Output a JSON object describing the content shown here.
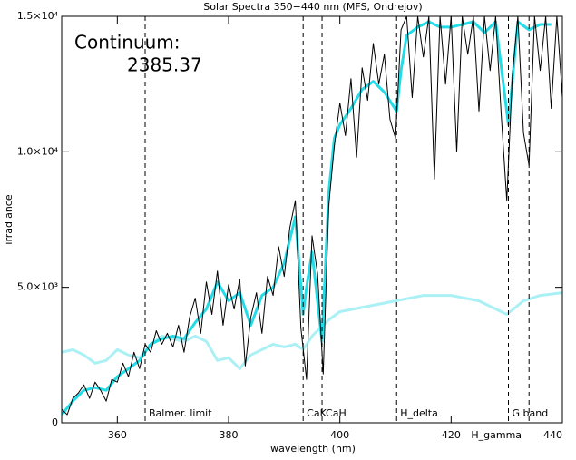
{
  "chart_data": {
    "type": "line",
    "title": "Solar Spectra 350−440 nm (MFS, Ondrejov)",
    "xlabel": "wavelength (nm)",
    "ylabel": "irradiance",
    "annotations": [
      "Continuum:",
      "2385.37"
    ],
    "xlim": [
      350,
      440
    ],
    "ylim": [
      0,
      15000
    ],
    "xticks": [
      360,
      380,
      400,
      420,
      440
    ],
    "yticks": [
      0,
      {
        "value": 5000,
        "label": "5.0×10³"
      },
      {
        "value": 10000,
        "label": "1.0×10⁴"
      },
      {
        "value": 15000,
        "label": "1.5×10⁴"
      }
    ],
    "markers": [
      {
        "x": 365,
        "label": "Balmer. limit"
      },
      {
        "x": 393.4,
        "label": "CaK"
      },
      {
        "x": 396.8,
        "label": "CaH"
      },
      {
        "x": 410.2,
        "label": "H_delta"
      },
      {
        "x": 430.3,
        "label": "G band"
      },
      {
        "x": 434,
        "label": "H_gamma"
      }
    ],
    "series": [
      {
        "color": "#000000",
        "x": [
          350,
          351,
          352,
          353,
          354,
          355,
          356,
          357,
          358,
          359,
          360,
          361,
          362,
          363,
          364,
          365,
          366,
          367,
          368,
          369,
          370,
          371,
          372,
          373,
          374,
          375,
          376,
          377,
          378,
          379,
          380,
          381,
          382,
          383,
          384,
          385,
          386,
          387,
          388,
          389,
          390,
          391,
          392,
          393,
          394,
          395,
          396,
          397,
          398,
          399,
          400,
          401,
          402,
          403,
          404,
          405,
          406,
          407,
          408,
          409,
          410,
          411,
          412,
          413,
          414,
          415,
          416,
          417,
          418,
          419,
          420,
          421,
          422,
          423,
          424,
          425,
          426,
          427,
          428,
          429,
          430,
          431,
          432,
          433,
          434,
          435,
          436,
          437,
          438,
          439,
          440
        ],
        "values": [
          500,
          300,
          900,
          1100,
          1400,
          900,
          1500,
          1200,
          800,
          1600,
          1500,
          2200,
          1700,
          2600,
          2000,
          2900,
          2600,
          3400,
          2900,
          3300,
          2800,
          3600,
          2600,
          3900,
          4600,
          3300,
          5200,
          4000,
          5600,
          3600,
          5100,
          4200,
          5300,
          2100,
          3900,
          4800,
          3300,
          5400,
          4700,
          6500,
          5400,
          7200,
          8200,
          3500,
          1600,
          6900,
          5500,
          1800,
          8000,
          10200,
          11800,
          10600,
          12700,
          9800,
          13100,
          11900,
          14000,
          12500,
          13600,
          11200,
          10500,
          14500,
          15000,
          12000,
          15000,
          13500,
          15000,
          9000,
          15000,
          12500,
          15000,
          10000,
          15000,
          13600,
          15000,
          11500,
          15000,
          13000,
          15000,
          11400,
          8200,
          12800,
          15000,
          10700,
          9500,
          15000,
          13000,
          15000,
          11600,
          15000,
          12000
        ]
      },
      {
        "color": "#22dce8",
        "x": [
          350,
          352,
          354,
          356,
          358,
          360,
          362,
          364,
          366,
          368,
          370,
          372,
          374,
          376,
          378,
          380,
          382,
          384,
          386,
          388,
          390,
          392,
          393.4,
          394,
          395,
          396.8,
          398,
          399,
          400,
          402,
          404,
          406,
          408,
          410.2,
          411,
          412,
          414,
          416,
          418,
          420,
          422,
          424,
          426,
          428,
          430.3,
          432,
          434,
          436,
          438
        ],
        "values": [
          300,
          800,
          1200,
          1300,
          1200,
          1700,
          2000,
          2300,
          2900,
          3100,
          3200,
          3100,
          3700,
          4200,
          5200,
          4500,
          4800,
          3600,
          4700,
          5000,
          5900,
          7600,
          4000,
          5000,
          6300,
          3000,
          8500,
          10500,
          11000,
          11600,
          12300,
          12600,
          12200,
          11500,
          13000,
          14300,
          14600,
          14800,
          14600,
          14600,
          14700,
          14800,
          14400,
          14800,
          11000,
          14800,
          14500,
          14700,
          14700
        ]
      },
      {
        "color": "#aaf0f5",
        "x": [
          350,
          352,
          354,
          356,
          358,
          360,
          362,
          364,
          366,
          368,
          370,
          372,
          374,
          376,
          378,
          380,
          382,
          384,
          386,
          388,
          390,
          392,
          393.4,
          395,
          398,
          400,
          405,
          410,
          415,
          420,
          425,
          430,
          433,
          436,
          440
        ],
        "values": [
          2600,
          2700,
          2500,
          2200,
          2300,
          2700,
          2500,
          2400,
          2900,
          3200,
          3100,
          3000,
          3200,
          3000,
          2300,
          2400,
          2000,
          2500,
          2700,
          2900,
          2800,
          2900,
          2700,
          3200,
          3800,
          4100,
          4300,
          4500,
          4700,
          4700,
          4500,
          4000,
          4500,
          4700,
          4800
        ]
      }
    ]
  }
}
